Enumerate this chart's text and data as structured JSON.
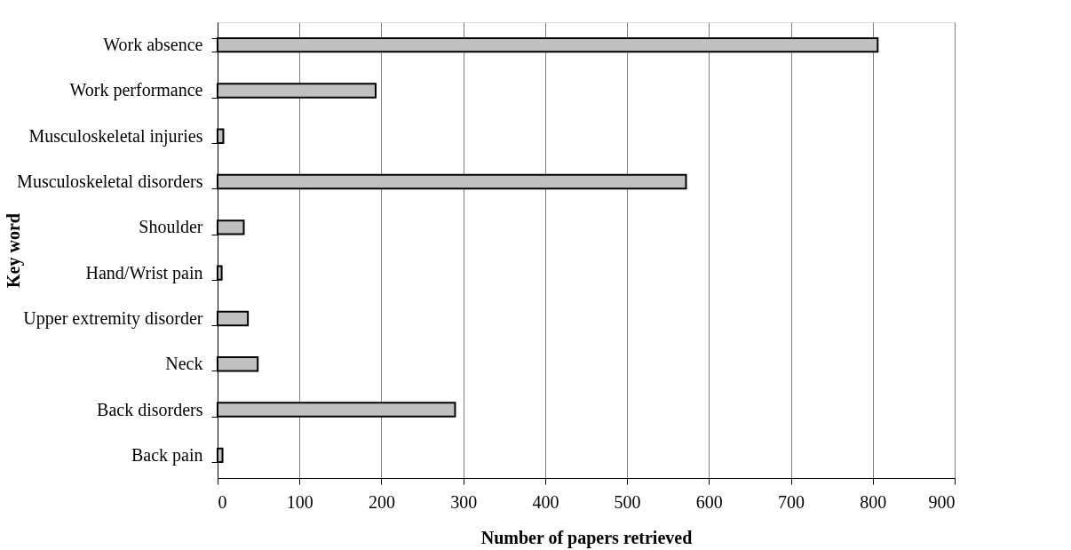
{
  "chart_data": {
    "type": "bar",
    "orientation": "horizontal",
    "xlabel": "Number of papers retrieved",
    "ylabel": "Key word",
    "categories": [
      "Work absence",
      "Work performance",
      "Musculoskeletal injuries",
      "Musculoskeletal disorders ",
      "Shoulder",
      "Hand/Wrist pain",
      "Upper extremity disorder",
      "Neck",
      "Back disorders",
      "Back pain"
    ],
    "values": [
      806,
      193,
      7,
      572,
      32,
      5,
      37,
      49,
      290,
      6
    ],
    "color": "#c0c0c0",
    "xlim": [
      0,
      900
    ],
    "xticks": [
      0,
      100,
      200,
      300,
      400,
      500,
      600,
      700,
      800,
      900
    ],
    "grid": "x"
  }
}
